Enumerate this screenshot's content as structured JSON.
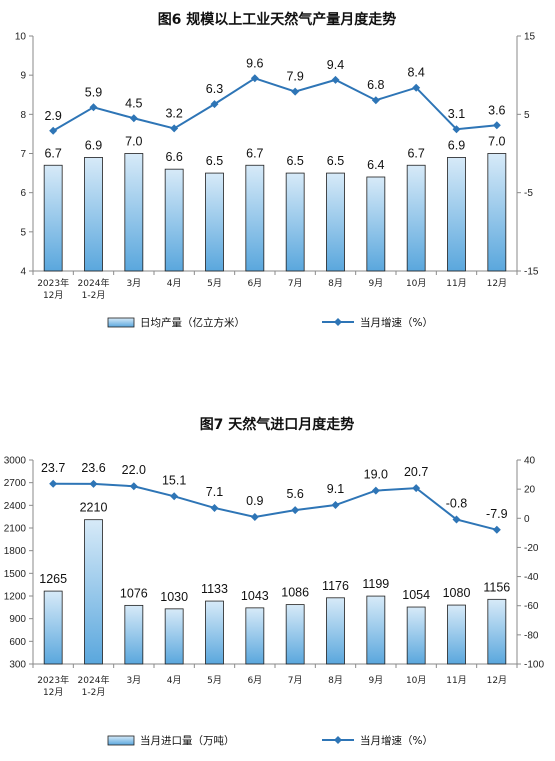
{
  "colors": {
    "bar_fill_top": "#d7eaf8",
    "bar_fill_bottom": "#5aa7dd",
    "bar_stroke": "#1f1f1f",
    "line": "#2e75b6"
  },
  "chart_data": [
    {
      "type": "bar",
      "title": "图6  规模以上工业天然气产量月度走势",
      "categories": [
        "2023年 12月",
        "2024年 1-2月",
        "3月",
        "4月",
        "5月",
        "6月",
        "7月",
        "8月",
        "9月",
        "10月",
        "11月",
        "12月"
      ],
      "series": [
        {
          "name": "日均产量（亿立方米）",
          "type": "bar",
          "axis": "left",
          "values": [
            6.7,
            6.9,
            7.0,
            6.6,
            6.5,
            6.7,
            6.5,
            6.5,
            6.4,
            6.7,
            6.9,
            7.0
          ],
          "labels": [
            "6.7",
            "6.9",
            "7.0",
            "6.6",
            "6.5",
            "6.7",
            "6.5",
            "6.5",
            "6.4",
            "6.7",
            "6.9",
            "7.0"
          ]
        },
        {
          "name": "当月增速（%）",
          "type": "line",
          "axis": "right",
          "values": [
            2.9,
            5.9,
            4.5,
            3.2,
            6.3,
            9.6,
            7.9,
            9.4,
            6.8,
            8.4,
            3.1,
            3.6
          ],
          "labels": [
            "2.9",
            "5.9",
            "4.5",
            "3.2",
            "6.3",
            "9.6",
            "7.9",
            "9.4",
            "6.8",
            "8.4",
            "3.1",
            "3.6"
          ]
        }
      ],
      "y_left": {
        "min": 4,
        "max": 10,
        "ticks": [
          "4",
          "5",
          "6",
          "7",
          "8",
          "9",
          "10"
        ]
      },
      "y_right": {
        "min": -15,
        "max": 15,
        "ticks": [
          "-15",
          "-5",
          "5",
          "15"
        ]
      },
      "legend": "bottom"
    },
    {
      "type": "bar",
      "title": "图7  天然气进口月度走势",
      "categories": [
        "2023年 12月",
        "2024年 1-2月",
        "3月",
        "4月",
        "5月",
        "6月",
        "7月",
        "8月",
        "9月",
        "10月",
        "11月",
        "12月"
      ],
      "series": [
        {
          "name": "当月进口量（万吨）",
          "type": "bar",
          "axis": "left",
          "values": [
            1265,
            2210,
            1076,
            1030,
            1133,
            1043,
            1086,
            1176,
            1199,
            1054,
            1080,
            1156
          ],
          "labels": [
            "1265",
            "2210",
            "1076",
            "1030",
            "1133",
            "1043",
            "1086",
            "1176",
            "1199",
            "1054",
            "1080",
            "1156"
          ]
        },
        {
          "name": "当月增速（%）",
          "type": "line",
          "axis": "right",
          "values": [
            23.7,
            23.6,
            22.0,
            15.1,
            7.1,
            0.9,
            5.6,
            9.1,
            19.0,
            20.7,
            -0.8,
            -7.9
          ],
          "labels": [
            "23.7",
            "23.6",
            "22.0",
            "15.1",
            "7.1",
            "0.9",
            "5.6",
            "9.1",
            "19.0",
            "20.7",
            "-0.8",
            "-7.9"
          ]
        }
      ],
      "y_left": {
        "min": 300,
        "max": 3000,
        "ticks": [
          "300",
          "600",
          "900",
          "1200",
          "1500",
          "1800",
          "2100",
          "2400",
          "2700",
          "3000"
        ]
      },
      "y_right": {
        "min": -100,
        "max": 40,
        "ticks": [
          "-100",
          "-80",
          "-60",
          "-40",
          "-20",
          "0",
          "20",
          "40"
        ]
      },
      "legend": "bottom"
    }
  ]
}
